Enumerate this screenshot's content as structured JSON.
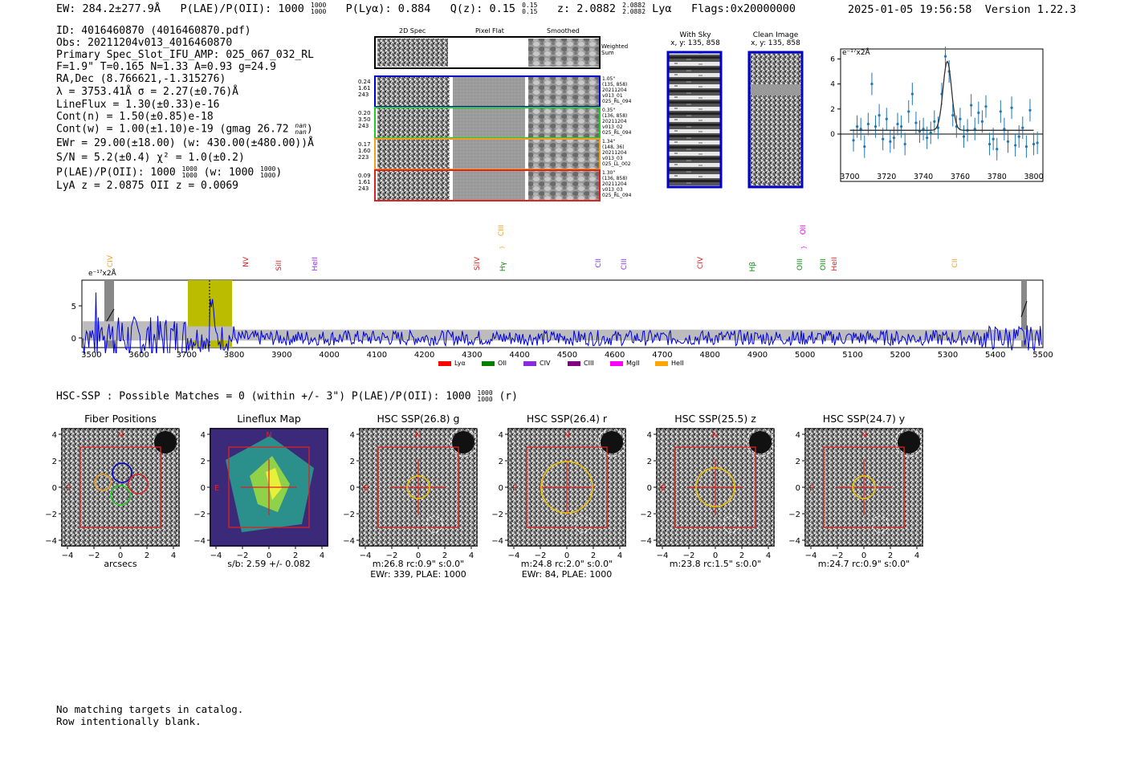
{
  "header": {
    "ew": "EW: 284.2±277.9Å",
    "plae_pre": "P(LAE)/P(OII): 1000",
    "plae_hi": "1000",
    "plae_lo": "1000",
    "plya": "P(Lyα): 0.884",
    "qz_pre": "Q(z): 0.15",
    "qz_hi": "0.15",
    "qz_lo": "0.15",
    "z_pre": "z: 2.0882",
    "z_hi": "2.0882",
    "z_lo": "2.0882",
    "z_line": "Lyα",
    "flags": "Flags:0x20000000",
    "timestamp": "2025-01-05 19:56:58",
    "version": "Version 1.22.3"
  },
  "info": {
    "id": "ID: 4016460870 (4016460870.pdf)",
    "obs": "Obs: 20211204v013_4016460870",
    "primary": "Primary Spec_Slot_IFU_AMP: 025_067_032_RL",
    "params": "F=1.9\"  T=0.165  N=1.33  A=0.93  g=24.9",
    "radec": "RA,Dec (8.766621,-1.315276)",
    "lambda": "λ = 3753.41Å   σ = 2.27(±0.76)Å",
    "lineflux": "LineFlux = 1.30(±0.33)e-16",
    "contn": "Cont(n) = 1.50(±0.85)e-18",
    "contw_pre": "Cont(w) = 1.00(±1.10)e-19 (gmag 26.72",
    "contw_hi": "nan",
    "contw_lo": "nan",
    "contw_post": ")",
    "ewr": "EWr = 29.00(±18.00) (w: 430.00(±480.00))Å",
    "sn": "S/N = 5.2(±0.4)  χ² = 1.0(±0.2)",
    "plae_pre": "P(LAE)/P(OII): 1000",
    "plae_hi": "1000",
    "plae_lo": "1000",
    "plae_w": "(w: 1000",
    "plae_w_hi": "1000",
    "plae_w_lo": "1000",
    "plae_w_post": ")",
    "lyaz": "LyA z = 2.0875  OII z = 0.0069"
  },
  "spectra_panel": {
    "col_2d": "2D Spec",
    "col_flat": "Pixel Flat",
    "col_smooth": "Smoothed",
    "weighted_sum": "Weighted Sum",
    "rows": [
      {
        "w1": "0.24",
        "w2": "1.61",
        "w3": "243",
        "dist": "1.05\"",
        "pos": "(135, 858)",
        "obs1": "20211204",
        "obs2": "v013_01",
        "amp": "025_RL_094",
        "color": "#0000cc"
      },
      {
        "w1": "0.20",
        "w2": "3.50",
        "w3": "243",
        "dist": "0.35\"",
        "pos": "(136, 858)",
        "obs1": "20211204",
        "obs2": "v013_02",
        "amp": "025_RL_094",
        "color": "#22cc22"
      },
      {
        "w1": "0.17",
        "w2": "1.60",
        "w3": "223",
        "dist": "1.34\"",
        "pos": "(148, 36)",
        "obs1": "20211204",
        "obs2": "v013_03",
        "amp": "025_LL_002",
        "color": "#f0a020"
      },
      {
        "w1": "0.09",
        "w2": "1.61",
        "w3": "243",
        "dist": "1.30\"",
        "pos": "(136, 858)",
        "obs1": "20211204",
        "obs2": "v013_03",
        "amp": "025_RL_094",
        "color": "#dd2222"
      }
    ]
  },
  "sky_panel": {
    "with_sky_title": "With Sky",
    "with_sky_xy": "x, y: 135, 858",
    "clean_title": "Clean Image",
    "clean_xy": "x, y: 135, 858"
  },
  "zoom_plot": {
    "unit": "e⁻¹⁷x2Å",
    "xticks": [
      "3700",
      "3720",
      "3740",
      "3760",
      "3780",
      "3800"
    ],
    "yticks": [
      "6",
      "4",
      "2",
      "0"
    ]
  },
  "full_spectrum": {
    "unit": "e⁻¹⁷x2Å",
    "yticks": [
      "5",
      "0"
    ],
    "xticks": [
      "3500",
      "3600",
      "3700",
      "3800",
      "3900",
      "4000",
      "4100",
      "4200",
      "4300",
      "4400",
      "4500",
      "4600",
      "4700",
      "4800",
      "4900",
      "5000",
      "5100",
      "5200",
      "5300",
      "5400",
      "5500"
    ],
    "lines": [
      {
        "label": "CIV",
        "color": "#f0a020"
      },
      {
        "label": "NV",
        "color": "#dd2222"
      },
      {
        "label": "SiII",
        "color": "#dd2222"
      },
      {
        "label": "HeII",
        "color": "#8833ee"
      },
      {
        "label": "SiIV",
        "color": "#dd2222"
      },
      {
        "label": "CIII",
        "color": "#f0a020"
      },
      {
        "label": "Hγ",
        "color": "#118811"
      },
      {
        "label": "CII",
        "color": "#8833ee"
      },
      {
        "label": "CIII",
        "color": "#8833ee"
      },
      {
        "label": "CIV",
        "color": "#dd2222"
      },
      {
        "label": "Hβ",
        "color": "#118811"
      },
      {
        "label": "OII",
        "color": "#ee00ee"
      },
      {
        "label": "OIII",
        "color": "#118811"
      },
      {
        "label": "OIII",
        "color": "#118811"
      },
      {
        "label": "HeII",
        "color": "#dd2222"
      },
      {
        "label": "CII",
        "color": "#f0a020"
      }
    ],
    "legend": [
      {
        "label": "Lyα",
        "color": "#ff0000"
      },
      {
        "label": "OII",
        "color": "#008000"
      },
      {
        "label": "CIV",
        "color": "#8a2be2"
      },
      {
        "label": "CIII",
        "color": "#800080"
      },
      {
        "label": "MgII",
        "color": "#ff00ff"
      },
      {
        "label": "HeII",
        "color": "#ffa500"
      }
    ]
  },
  "hsc": {
    "summary_pre": "HSC-SSP : Possible Matches = 0 (within +/- 3\")  P(LAE)/P(OII): 1000",
    "summary_hi": "1000",
    "summary_lo": "1000",
    "summary_post": "(r)",
    "cutouts": [
      {
        "title": "Fiber Positions",
        "label1": "arcsecs",
        "label2": ""
      },
      {
        "title": "Lineflux Map",
        "label1": "s/b: 2.59 +/- 0.082",
        "label2": ""
      },
      {
        "title": "HSC SSP(26.8) g",
        "label1": "m:26.8 rc:0.9\"  s:0.0\"",
        "label2": "EWr: 339, PLAE: 1000"
      },
      {
        "title": "HSC SSP(26.4) r",
        "label1": "m:24.8 rc:2.0\"  s:0.0\"",
        "label2": "EWr: 84, PLAE: 1000"
      },
      {
        "title": "HSC SSP(25.5) z",
        "label1": "m:23.8 rc:1.5\"  s:0.0\"",
        "label2": ""
      },
      {
        "title": "HSC SSP(24.7) y",
        "label1": "m:24.7 rc:0.9\"  s:0.0\"",
        "label2": ""
      }
    ],
    "axis_ticks": [
      "4",
      "2",
      "0",
      "−2",
      "−4"
    ],
    "xaxis_ticks": [
      "−4",
      "−2",
      "0",
      "2",
      "4"
    ],
    "north": "N",
    "east": "E"
  },
  "footer": {
    "line1": "No matching targets in catalog.",
    "line2": "Row intentionally blank."
  }
}
